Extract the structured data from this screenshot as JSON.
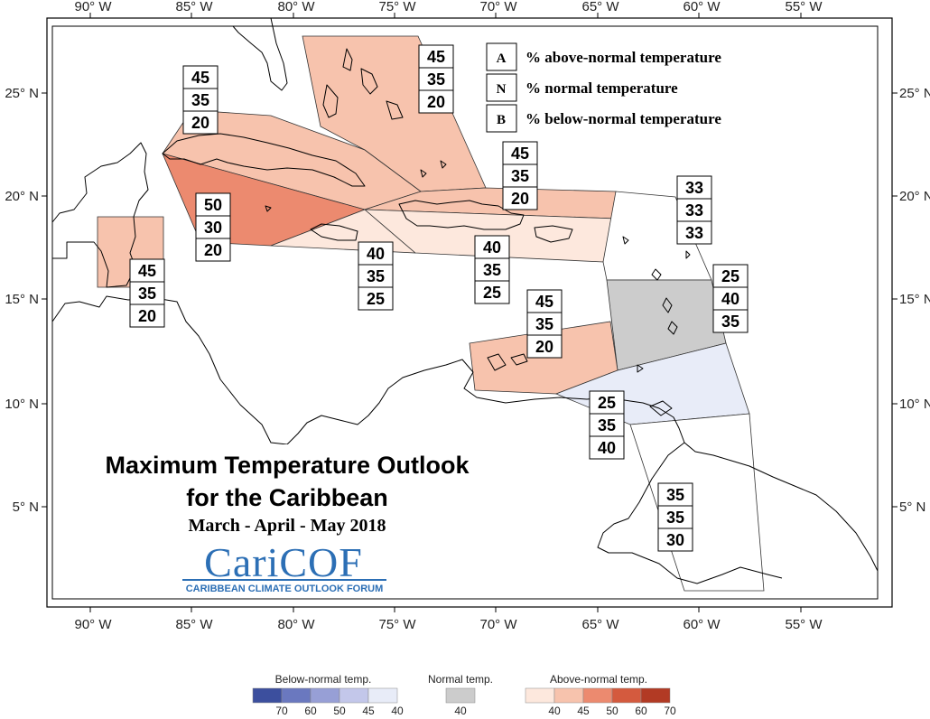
{
  "axes": {
    "lon_labels": [
      "90° W",
      "85° W",
      "80° W",
      "75° W",
      "70° W",
      "65° W",
      "60° W",
      "55° W"
    ],
    "lat_labels": [
      "25° N",
      "20° N",
      "15° N",
      "10° N",
      "5° N"
    ]
  },
  "legend": {
    "items": [
      {
        "key": "A",
        "text": "% above-normal temperature"
      },
      {
        "key": "N",
        "text": "% normal temperature"
      },
      {
        "key": "B",
        "text": "% below-normal temperature"
      }
    ]
  },
  "zones": [
    {
      "name": "bahamas",
      "above": "45",
      "normal": "35",
      "below": "20",
      "color": "#f7c3ad"
    },
    {
      "name": "cuba",
      "above": "45",
      "normal": "35",
      "below": "20",
      "color": "#f7c3ad"
    },
    {
      "name": "cayman",
      "above": "50",
      "normal": "30",
      "below": "20",
      "color": "#ec8a6f"
    },
    {
      "name": "belize",
      "above": "45",
      "normal": "35",
      "below": "20",
      "color": "#f7c3ad"
    },
    {
      "name": "hispaniola-north",
      "above": "45",
      "normal": "35",
      "below": "20",
      "color": "#f7c3ad"
    },
    {
      "name": "jamaica",
      "above": "40",
      "normal": "35",
      "below": "25",
      "color": "#fde8dd"
    },
    {
      "name": "hispaniola-south",
      "above": "40",
      "normal": "35",
      "below": "25",
      "color": "#fde8dd"
    },
    {
      "name": "leeward",
      "above": "33",
      "normal": "33",
      "below": "33",
      "color": "#ffffff"
    },
    {
      "name": "windward",
      "above": "25",
      "normal": "40",
      "below": "35",
      "color": "#cccccc"
    },
    {
      "name": "abc",
      "above": "45",
      "normal": "35",
      "below": "20",
      "color": "#f7c3ad"
    },
    {
      "name": "trinidad",
      "above": "25",
      "normal": "35",
      "below": "40",
      "color": "#e8ecf8"
    },
    {
      "name": "guianas",
      "above": "35",
      "normal": "35",
      "below": "30",
      "color": "#ffffff"
    }
  ],
  "title": {
    "line1": "Maximum Temperature Outlook",
    "line2": "for the Caribbean",
    "period": "March - April - May 2018"
  },
  "logo": {
    "name": "CariCOF",
    "tagline": "CARIBBEAN CLIMATE OUTLOOK FORUM"
  },
  "colorbar": {
    "below": {
      "title": "Below-normal temp.",
      "labels": [
        "70",
        "60",
        "50",
        "45",
        "40"
      ],
      "colors": [
        "#3c4f9e",
        "#6a78bf",
        "#979fd6",
        "#c3c7ea",
        "#e8ecf8"
      ]
    },
    "normal": {
      "title": "Normal temp.",
      "labels": [
        "40"
      ],
      "colors": [
        "#cccccc"
      ]
    },
    "above": {
      "title": "Above-normal temp.",
      "labels": [
        "40",
        "45",
        "50",
        "60",
        "70"
      ],
      "colors": [
        "#fde8dd",
        "#f7c3ad",
        "#ec8a6f",
        "#d45a3e",
        "#b23a24"
      ]
    }
  }
}
